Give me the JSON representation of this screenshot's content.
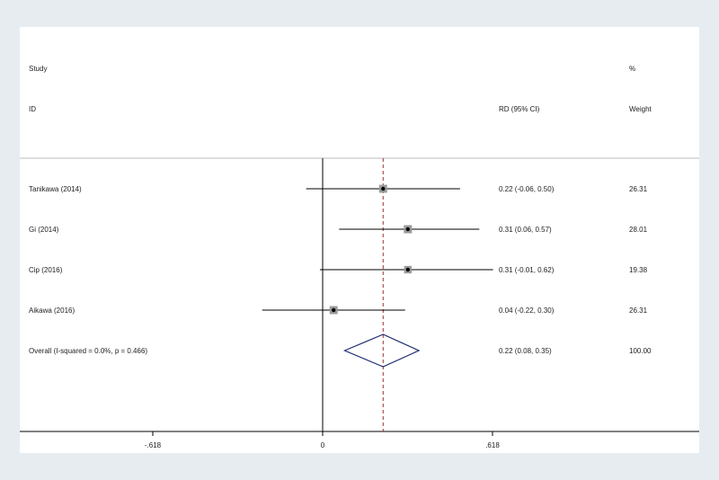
{
  "chart_data": {
    "type": "forest",
    "headers": {
      "study_top": "Study",
      "study_bottom": "ID",
      "ci": "RD (95% CI)",
      "weight_top": "%",
      "weight_bottom": "Weight"
    },
    "studies": [
      {
        "label": "Tanikawa (2014)",
        "estimate": 0.22,
        "lower": -0.06,
        "upper": 0.5,
        "ci_text": "0.22 (-0.06, 0.50)",
        "weight": 26.31,
        "weight_text": "26.31"
      },
      {
        "label": "Gi (2014)",
        "estimate": 0.31,
        "lower": 0.06,
        "upper": 0.57,
        "ci_text": "0.31 (0.06, 0.57)",
        "weight": 28.01,
        "weight_text": "28.01"
      },
      {
        "label": "Cip (2016)",
        "estimate": 0.31,
        "lower": -0.01,
        "upper": 0.62,
        "ci_text": "0.31 (-0.01, 0.62)",
        "weight": 19.38,
        "weight_text": "19.38"
      },
      {
        "label": "Aikawa (2016)",
        "estimate": 0.04,
        "lower": -0.22,
        "upper": 0.3,
        "ci_text": "0.04 (-0.22, 0.30)",
        "weight": 26.31,
        "weight_text": "26.31"
      }
    ],
    "overall": {
      "label": "Overall  (I-squared = 0.0%, p = 0.466)",
      "estimate": 0.22,
      "lower": 0.08,
      "upper": 0.35,
      "ci_text": "0.22 (0.08, 0.35)",
      "weight_text": "100.00"
    },
    "x_ticks": [
      {
        "value": -0.618,
        "label": "-.618"
      },
      {
        "value": 0,
        "label": "0"
      },
      {
        "value": 0.618,
        "label": ".618"
      }
    ],
    "xlim": [
      -0.618,
      0.618
    ],
    "colors": {
      "background": "#e6ecf0",
      "ci_line": "#000000",
      "diamond": "#1f2a6e",
      "overall_line": "#a0302f",
      "box": "#9a9a9a"
    }
  }
}
